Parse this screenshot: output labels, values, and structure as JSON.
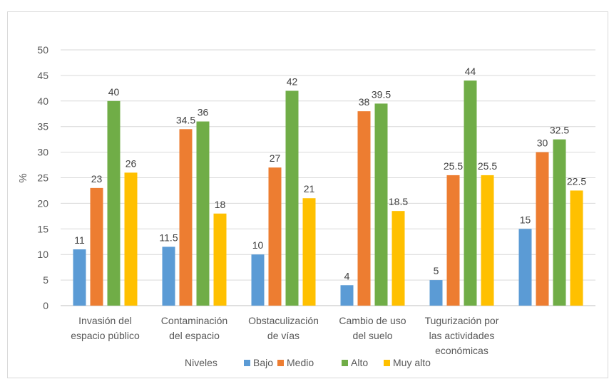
{
  "chart_data": {
    "type": "bar",
    "title": "",
    "xlabel": "",
    "ylabel": "%",
    "ylim": [
      0,
      50
    ],
    "yticks": [
      0,
      5,
      10,
      15,
      20,
      25,
      30,
      35,
      40,
      45,
      50
    ],
    "categories": [
      [
        "Invasión del",
        "espacio público"
      ],
      [
        "Contaminación",
        "del espacio"
      ],
      [
        "Obstaculización",
        "de vías"
      ],
      [
        "Cambio de uso",
        "del suelo"
      ],
      [
        "Tugurización por",
        "las actividades",
        "económicas"
      ],
      []
    ],
    "series": [
      {
        "name": "Bajo",
        "color": "#5b9bd5",
        "values": [
          11,
          11.5,
          10,
          4,
          5,
          15
        ],
        "labels": [
          "11",
          "11.5",
          "10",
          "4",
          "5",
          "15"
        ]
      },
      {
        "name": "Medio",
        "color": "#ed7d31",
        "values": [
          23,
          34.5,
          27,
          38,
          25.5,
          30
        ],
        "labels": [
          "23",
          "34.5",
          "27",
          "38",
          "25.5",
          "30"
        ]
      },
      {
        "name": "Alto",
        "color": "#70ad47",
        "values": [
          40,
          36,
          42,
          39.5,
          44,
          32.5
        ],
        "labels": [
          "40",
          "36",
          "42",
          "39.5",
          "44",
          "32.5"
        ]
      },
      {
        "name": "Muy alto",
        "color": "#ffc000",
        "values": [
          26,
          18,
          21,
          18.5,
          25.5,
          22.5
        ],
        "labels": [
          "26",
          "18",
          "21",
          "18.5",
          "25.5",
          "22.5"
        ]
      }
    ],
    "legend": {
      "title": "Niveles",
      "position": "bottom"
    },
    "grid": true
  }
}
